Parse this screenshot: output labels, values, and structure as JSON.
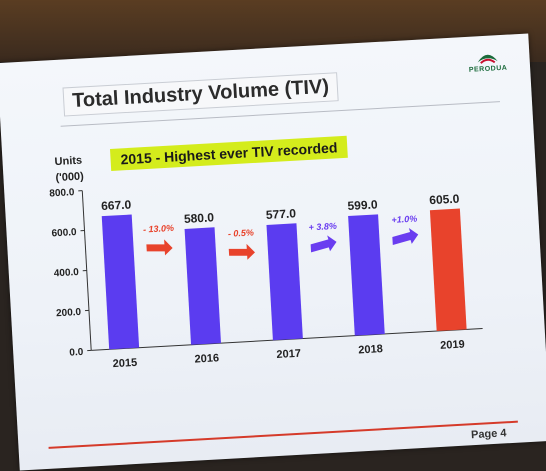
{
  "brand": {
    "name": "PERODUA",
    "green": "#1a6a3a",
    "red": "#c8102e"
  },
  "slide": {
    "title": "Total Industry Volume (TIV)",
    "highlight": "2015 - Highest ever TIV recorded",
    "units_line1": "Units",
    "units_line2": "('000)",
    "page": "Page 4"
  },
  "chart_data": {
    "type": "bar",
    "categories": [
      "2015",
      "2016",
      "2017",
      "2018",
      "2019"
    ],
    "values": [
      667.0,
      580.0,
      577.0,
      599.0,
      605.0
    ],
    "value_labels": [
      "667.0",
      "580.0",
      "577.0",
      "599.0",
      "605.0"
    ],
    "bar_colors": [
      "#5b3cf0",
      "#5b3cf0",
      "#5b3cf0",
      "#5b3cf0",
      "#e8432c"
    ],
    "ylim": [
      0,
      800
    ],
    "yticks": [
      0,
      200,
      400,
      600,
      800
    ],
    "ytick_labels": [
      "0.0",
      "200.0",
      "400.0",
      "600.0",
      "800.0"
    ],
    "grid": false,
    "changes": [
      {
        "label": "- 13.0%",
        "direction": "down",
        "color": "#e8432c"
      },
      {
        "label": "- 0.5%",
        "direction": "down",
        "color": "#e8432c"
      },
      {
        "label": "+ 3.8%",
        "direction": "up",
        "color": "#6a3df0"
      },
      {
        "label": "+1.0%",
        "direction": "up",
        "color": "#6a3df0"
      }
    ]
  }
}
